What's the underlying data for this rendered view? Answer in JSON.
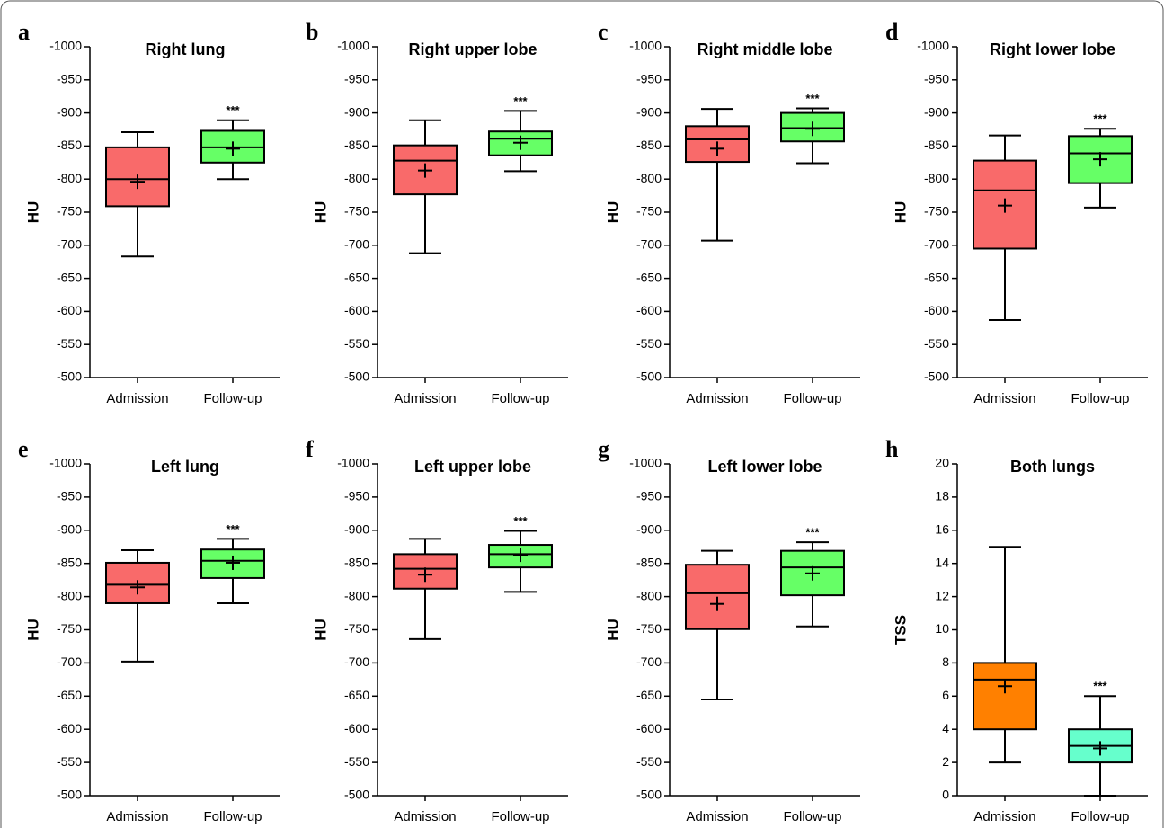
{
  "chart_data": [
    {
      "type": "box",
      "label": "a",
      "title": "Right lung",
      "ylabel": "HU",
      "categories": [
        "Admission",
        "Follow-up"
      ],
      "significance": "***",
      "ylim": [
        -500,
        -1000
      ],
      "yticks": [
        -1000,
        -950,
        -900,
        -850,
        -800,
        -750,
        -700,
        -650,
        -600,
        -550,
        -500
      ],
      "boxes": [
        {
          "color": "#f96a6a",
          "min": -871,
          "q1": -848,
          "median": -800,
          "q3": -759,
          "max": -683,
          "mean": -796
        },
        {
          "color": "#66ff66",
          "min": -889,
          "q1": -873,
          "median": -848,
          "q3": -825,
          "max": -800,
          "mean": -846
        }
      ]
    },
    {
      "type": "box",
      "label": "b",
      "title": "Right upper lobe",
      "ylabel": "HU",
      "categories": [
        "Admission",
        "Follow-up"
      ],
      "significance": "***",
      "ylim": [
        -500,
        -1000
      ],
      "yticks": [
        -1000,
        -950,
        -900,
        -850,
        -800,
        -750,
        -700,
        -650,
        -600,
        -550,
        -500
      ],
      "boxes": [
        {
          "color": "#f96a6a",
          "min": -889,
          "q1": -851,
          "median": -828,
          "q3": -777,
          "max": -688,
          "mean": -813
        },
        {
          "color": "#66ff66",
          "min": -903,
          "q1": -872,
          "median": -861,
          "q3": -836,
          "max": -812,
          "mean": -855
        }
      ]
    },
    {
      "type": "box",
      "label": "c",
      "title": "Right middle lobe",
      "ylabel": "HU",
      "categories": [
        "Admission",
        "Follow-up"
      ],
      "significance": "***",
      "ylim": [
        -500,
        -1000
      ],
      "yticks": [
        -1000,
        -950,
        -900,
        -850,
        -800,
        -750,
        -700,
        -650,
        -600,
        -550,
        -500
      ],
      "boxes": [
        {
          "color": "#f96a6a",
          "min": -906,
          "q1": -880,
          "median": -860,
          "q3": -826,
          "max": -707,
          "mean": -846
        },
        {
          "color": "#66ff66",
          "min": -907,
          "q1": -900,
          "median": -877,
          "q3": -857,
          "max": -824,
          "mean": -876
        }
      ]
    },
    {
      "type": "box",
      "label": "d",
      "title": "Right lower lobe",
      "ylabel": "HU",
      "categories": [
        "Admission",
        "Follow-up"
      ],
      "significance": "***",
      "ylim": [
        -500,
        -1000
      ],
      "yticks": [
        -1000,
        -950,
        -900,
        -850,
        -800,
        -750,
        -700,
        -650,
        -600,
        -550,
        -500
      ],
      "boxes": [
        {
          "color": "#f96a6a",
          "min": -866,
          "q1": -828,
          "median": -783,
          "q3": -695,
          "max": -587,
          "mean": -760
        },
        {
          "color": "#66ff66",
          "min": -876,
          "q1": -865,
          "median": -839,
          "q3": -794,
          "max": -757,
          "mean": -830
        }
      ]
    },
    {
      "type": "box",
      "label": "e",
      "title": "Left lung",
      "ylabel": "HU",
      "categories": [
        "Admission",
        "Follow-up"
      ],
      "significance": "***",
      "ylim": [
        -500,
        -1000
      ],
      "yticks": [
        -1000,
        -950,
        -900,
        -850,
        -800,
        -750,
        -700,
        -650,
        -600,
        -550,
        -500
      ],
      "boxes": [
        {
          "color": "#f96a6a",
          "min": -870,
          "q1": -851,
          "median": -818,
          "q3": -790,
          "max": -702,
          "mean": -814
        },
        {
          "color": "#66ff66",
          "min": -887,
          "q1": -871,
          "median": -854,
          "q3": -828,
          "max": -790,
          "mean": -851
        }
      ]
    },
    {
      "type": "box",
      "label": "f",
      "title": "Left upper lobe",
      "ylabel": "HU",
      "categories": [
        "Admission",
        "Follow-up"
      ],
      "significance": "***",
      "ylim": [
        -500,
        -1000
      ],
      "yticks": [
        -1000,
        -950,
        -900,
        -850,
        -800,
        -750,
        -700,
        -650,
        -600,
        -550,
        -500
      ],
      "boxes": [
        {
          "color": "#f96a6a",
          "min": -887,
          "q1": -864,
          "median": -842,
          "q3": -812,
          "max": -736,
          "mean": -833
        },
        {
          "color": "#66ff66",
          "min": -899,
          "q1": -878,
          "median": -864,
          "q3": -844,
          "max": -807,
          "mean": -863
        }
      ]
    },
    {
      "type": "box",
      "label": "g",
      "title": "Left lower lobe",
      "ylabel": "HU",
      "categories": [
        "Admission",
        "Follow-up"
      ],
      "significance": "***",
      "ylim": [
        -500,
        -1000
      ],
      "yticks": [
        -1000,
        -950,
        -900,
        -850,
        -800,
        -750,
        -700,
        -650,
        -600,
        -550,
        -500
      ],
      "boxes": [
        {
          "color": "#f96a6a",
          "min": -869,
          "q1": -848,
          "median": -805,
          "q3": -751,
          "max": -645,
          "mean": -789
        },
        {
          "color": "#66ff66",
          "min": -882,
          "q1": -869,
          "median": -844,
          "q3": -802,
          "max": -755,
          "mean": -835
        }
      ]
    },
    {
      "type": "box",
      "label": "h",
      "title": "Both lungs",
      "ylabel": "TSS",
      "categories": [
        "Admission",
        "Follow-up"
      ],
      "significance": "***",
      "ylim": [
        0,
        20
      ],
      "yticks": [
        0,
        2,
        4,
        6,
        8,
        10,
        12,
        14,
        16,
        18,
        20
      ],
      "boxes": [
        {
          "color": "#ff8000",
          "min": 2,
          "q1": 4,
          "median": 7,
          "q3": 8,
          "max": 15,
          "mean": 6.6
        },
        {
          "color": "#66ffcc",
          "min": 0,
          "q1": 2,
          "median": 3,
          "q3": 4,
          "max": 6,
          "mean": 2.85
        }
      ]
    }
  ]
}
